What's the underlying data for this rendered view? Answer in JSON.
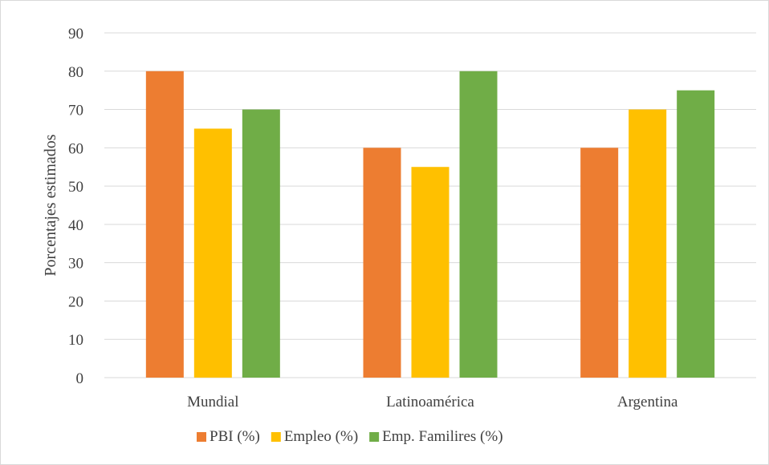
{
  "chart_data": {
    "type": "bar",
    "title": "",
    "xlabel": "",
    "ylabel": "Porcentajes estimados",
    "categories": [
      "Mundial",
      "Latinoamérica",
      "Argentina"
    ],
    "series": [
      {
        "name": "PBI (%)",
        "color": "#ED7D31",
        "values": [
          80,
          60,
          60
        ]
      },
      {
        "name": "Empleo (%)",
        "color": "#FFC000",
        "values": [
          65,
          55,
          70
        ]
      },
      {
        "name": "Emp. Familires (%)",
        "color": "#70AD47",
        "values": [
          70,
          80,
          75
        ]
      }
    ],
    "ylim": [
      0,
      90
    ],
    "yticks": [
      0,
      10,
      20,
      30,
      40,
      50,
      60,
      70,
      80,
      90
    ],
    "grid": true,
    "legend_position": "bottom"
  }
}
